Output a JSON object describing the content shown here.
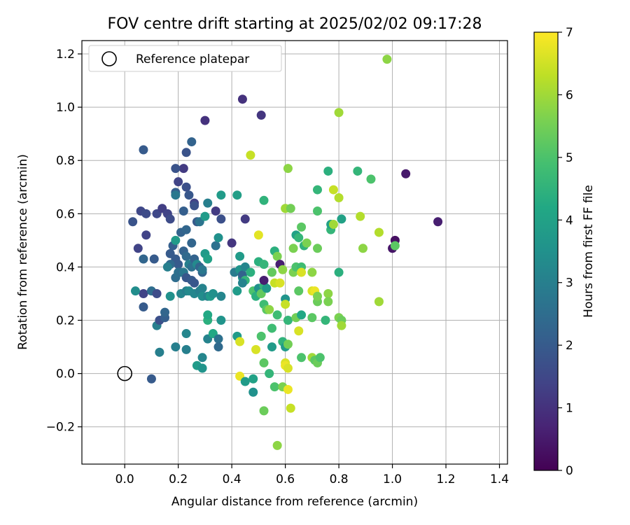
{
  "chart_data": {
    "type": "scatter",
    "title": "FOV centre drift starting at 2025/02/02 09:17:28",
    "xlabel": "Angular distance from reference (arcmin)",
    "ylabel": "Rotation from reference (arcmin)",
    "xlim": [
      -0.16,
      1.43
    ],
    "ylim": [
      -0.34,
      1.25
    ],
    "xticks": [
      "0.0",
      "0.2",
      "0.4",
      "0.6",
      "0.8",
      "1.0",
      "1.2",
      "1.4"
    ],
    "yticks": [
      "−0.2",
      "0.0",
      "0.2",
      "0.4",
      "0.6",
      "0.8",
      "1.0",
      "1.2"
    ],
    "grid": true,
    "legend": {
      "placement": "top-left",
      "label": "Reference platepar"
    },
    "reference": {
      "x": 0.0,
      "y": 0.0
    },
    "colorbar": {
      "label": "Hours from first FF file",
      "range": [
        0,
        7
      ],
      "ticks": [
        "0",
        "1",
        "2",
        "3",
        "4",
        "5",
        "6",
        "7"
      ],
      "colormap": "viridis"
    },
    "points": [
      [
        0.03,
        0.57,
        1.8
      ],
      [
        0.06,
        0.61,
        1.5
      ],
      [
        0.08,
        0.6,
        1.6
      ],
      [
        0.07,
        0.84,
        2.0
      ],
      [
        0.12,
        0.6,
        1.5
      ],
      [
        0.14,
        0.62,
        1.3
      ],
      [
        0.16,
        0.6,
        1.4
      ],
      [
        0.17,
        0.58,
        1.6
      ],
      [
        0.08,
        0.52,
        1.4
      ],
      [
        0.05,
        0.47,
        1.4
      ],
      [
        0.07,
        0.43,
        2.3
      ],
      [
        0.11,
        0.43,
        2.0
      ],
      [
        0.07,
        0.3,
        1.4
      ],
      [
        0.04,
        0.31,
        3.4
      ],
      [
        0.1,
        0.31,
        2.5
      ],
      [
        0.12,
        0.3,
        1.6
      ],
      [
        0.07,
        0.25,
        2.0
      ],
      [
        0.12,
        0.18,
        3.0
      ],
      [
        0.13,
        0.2,
        1.7
      ],
      [
        0.15,
        0.21,
        2.1
      ],
      [
        0.15,
        0.23,
        2.3
      ],
      [
        0.1,
        -0.02,
        2.0
      ],
      [
        0.13,
        0.08,
        3.0
      ],
      [
        0.17,
        0.29,
        3.5
      ],
      [
        0.19,
        0.1,
        3.0
      ],
      [
        0.23,
        0.09,
        3.0
      ],
      [
        0.23,
        0.15,
        3.2
      ],
      [
        0.22,
        0.77,
        1.2
      ],
      [
        0.23,
        0.83,
        1.8
      ],
      [
        0.25,
        0.87,
        2.2
      ],
      [
        0.19,
        0.68,
        2.1
      ],
      [
        0.19,
        0.67,
        2.8
      ],
      [
        0.2,
        0.72,
        1.4
      ],
      [
        0.19,
        0.77,
        1.8
      ],
      [
        0.23,
        0.7,
        1.7
      ],
      [
        0.24,
        0.67,
        1.9
      ],
      [
        0.26,
        0.64,
        1.4
      ],
      [
        0.26,
        0.63,
        1.8
      ],
      [
        0.22,
        0.61,
        2.1
      ],
      [
        0.21,
        0.53,
        2.2
      ],
      [
        0.23,
        0.54,
        2.3
      ],
      [
        0.25,
        0.49,
        2.3
      ],
      [
        0.27,
        0.57,
        2.0
      ],
      [
        0.28,
        0.57,
        2.7
      ],
      [
        0.3,
        0.59,
        3.8
      ],
      [
        0.31,
        0.64,
        3.0
      ],
      [
        0.17,
        0.45,
        2.0
      ],
      [
        0.18,
        0.48,
        2.1
      ],
      [
        0.19,
        0.5,
        3.8
      ],
      [
        0.19,
        0.43,
        2.0
      ],
      [
        0.2,
        0.41,
        2.0
      ],
      [
        0.17,
        0.41,
        2.4
      ],
      [
        0.16,
        0.4,
        3.0
      ],
      [
        0.19,
        0.36,
        2.5
      ],
      [
        0.2,
        0.38,
        2.6
      ],
      [
        0.21,
        0.38,
        2.5
      ],
      [
        0.22,
        0.46,
        2.2
      ],
      [
        0.23,
        0.44,
        2.4
      ],
      [
        0.22,
        0.38,
        2.8
      ],
      [
        0.23,
        0.36,
        1.9
      ],
      [
        0.25,
        0.35,
        2.0
      ],
      [
        0.26,
        0.34,
        1.9
      ],
      [
        0.24,
        0.41,
        3.0
      ],
      [
        0.25,
        0.4,
        2.6
      ],
      [
        0.26,
        0.43,
        2.2
      ],
      [
        0.27,
        0.41,
        3.3
      ],
      [
        0.28,
        0.4,
        2.3
      ],
      [
        0.29,
        0.38,
        2.3
      ],
      [
        0.3,
        0.45,
        3.8
      ],
      [
        0.31,
        0.43,
        4.0
      ],
      [
        0.21,
        0.3,
        3.2
      ],
      [
        0.23,
        0.31,
        3.0
      ],
      [
        0.24,
        0.31,
        3.3
      ],
      [
        0.26,
        0.3,
        3.2
      ],
      [
        0.28,
        0.31,
        3.0
      ],
      [
        0.29,
        0.32,
        3.1
      ],
      [
        0.29,
        0.29,
        3.4
      ],
      [
        0.31,
        0.29,
        3.1
      ],
      [
        0.32,
        0.29,
        3.8
      ],
      [
        0.33,
        0.3,
        3.5
      ],
      [
        0.36,
        0.29,
        3.2
      ],
      [
        0.29,
        0.39,
        2.8
      ],
      [
        0.27,
        0.03,
        3.8
      ],
      [
        0.29,
        0.06,
        3.2
      ],
      [
        0.29,
        0.02,
        3.6
      ],
      [
        0.31,
        0.13,
        3.1
      ],
      [
        0.33,
        0.15,
        4.2
      ],
      [
        0.35,
        0.13,
        2.6
      ],
      [
        0.35,
        0.1,
        2.4
      ],
      [
        0.36,
        0.2,
        3.6
      ],
      [
        0.31,
        0.2,
        4.4
      ],
      [
        0.31,
        0.22,
        4.2
      ],
      [
        0.34,
        0.48,
        2.6
      ],
      [
        0.35,
        0.51,
        3.5
      ],
      [
        0.36,
        0.58,
        1.7
      ],
      [
        0.36,
        0.67,
        3.8
      ],
      [
        0.34,
        0.61,
        1.2
      ],
      [
        0.3,
        0.95,
        1.0
      ],
      [
        0.4,
        0.49,
        1.1
      ],
      [
        0.41,
        0.38,
        2.9
      ],
      [
        0.42,
        0.67,
        3.9
      ],
      [
        0.43,
        0.39,
        3.6
      ],
      [
        0.44,
        0.36,
        3.8
      ],
      [
        0.44,
        0.37,
        2.2
      ],
      [
        0.43,
        0.44,
        3.8
      ],
      [
        0.45,
        0.35,
        4.6
      ],
      [
        0.44,
        0.34,
        3.1
      ],
      [
        0.45,
        0.4,
        3.2
      ],
      [
        0.45,
        0.58,
        1.2
      ],
      [
        0.44,
        1.03,
        1.0
      ],
      [
        0.42,
        0.31,
        3.8
      ],
      [
        0.47,
        0.38,
        4.4
      ],
      [
        0.48,
        0.31,
        5.0
      ],
      [
        0.49,
        0.29,
        4.4
      ],
      [
        0.5,
        0.32,
        3.5
      ],
      [
        0.51,
        0.3,
        5.3
      ],
      [
        0.52,
        0.33,
        4.6
      ],
      [
        0.52,
        0.26,
        4.8
      ],
      [
        0.53,
        0.24,
        5.2
      ],
      [
        0.54,
        0.24,
        5.8
      ],
      [
        0.5,
        0.42,
        4.4
      ],
      [
        0.52,
        0.41,
        4.6
      ],
      [
        0.55,
        0.38,
        5.3
      ],
      [
        0.56,
        0.46,
        4.4
      ],
      [
        0.57,
        0.44,
        5.6
      ],
      [
        0.52,
        0.65,
        4.5
      ],
      [
        0.53,
        0.32,
        3.8
      ],
      [
        0.55,
        0.17,
        4.8
      ],
      [
        0.55,
        0.1,
        3.8
      ],
      [
        0.51,
        0.14,
        5.0
      ],
      [
        0.52,
        0.04,
        5.2
      ],
      [
        0.54,
        0.0,
        4.6
      ],
      [
        0.56,
        -0.05,
        5.0
      ],
      [
        0.52,
        -0.14,
        5.4
      ],
      [
        0.57,
        -0.27,
        5.8
      ],
      [
        0.51,
        0.97,
        1.1
      ],
      [
        0.52,
        0.35,
        0.6
      ],
      [
        0.42,
        0.14,
        3.8
      ],
      [
        0.43,
        0.12,
        6.6
      ],
      [
        0.43,
        -0.01,
        6.8
      ],
      [
        0.45,
        -0.03,
        3.8
      ],
      [
        0.48,
        -0.07,
        3.5
      ],
      [
        0.48,
        -0.02,
        4.0
      ],
      [
        0.5,
        0.52,
        6.7
      ],
      [
        0.49,
        0.09,
        6.6
      ],
      [
        0.47,
        0.82,
        6.4
      ],
      [
        0.56,
        0.34,
        6.4
      ],
      [
        0.58,
        0.34,
        6.6
      ],
      [
        0.58,
        0.41,
        0.6
      ],
      [
        0.59,
        0.39,
        5.8
      ],
      [
        0.6,
        0.28,
        3.6
      ],
      [
        0.6,
        0.26,
        6.4
      ],
      [
        0.57,
        0.22,
        4.8
      ],
      [
        0.59,
        0.12,
        4.5
      ],
      [
        0.6,
        0.1,
        3.8
      ],
      [
        0.6,
        0.04,
        6.6
      ],
      [
        0.6,
        0.03,
        6.8
      ],
      [
        0.61,
        0.02,
        6.6
      ],
      [
        0.61,
        0.11,
        5.5
      ],
      [
        0.59,
        -0.05,
        5.6
      ],
      [
        0.61,
        -0.06,
        6.8
      ],
      [
        0.62,
        -0.13,
        6.4
      ],
      [
        0.61,
        0.2,
        4.6
      ],
      [
        0.61,
        0.77,
        5.8
      ],
      [
        0.6,
        0.62,
        6.0
      ],
      [
        0.62,
        0.62,
        5.5
      ],
      [
        0.63,
        0.38,
        5.6
      ],
      [
        0.64,
        0.4,
        5.0
      ],
      [
        0.64,
        0.52,
        4.0
      ],
      [
        0.65,
        0.51,
        4.6
      ],
      [
        0.66,
        0.4,
        4.8
      ],
      [
        0.66,
        0.38,
        6.6
      ],
      [
        0.66,
        0.55,
        5.2
      ],
      [
        0.63,
        0.47,
        5.6
      ],
      [
        0.64,
        0.21,
        5.5
      ],
      [
        0.65,
        0.16,
        6.6
      ],
      [
        0.65,
        0.31,
        5.2
      ],
      [
        0.66,
        0.06,
        5.0
      ],
      [
        0.66,
        0.22,
        4.2
      ],
      [
        0.67,
        0.48,
        4.5
      ],
      [
        0.68,
        0.49,
        5.6
      ],
      [
        0.7,
        0.38,
        5.8
      ],
      [
        0.7,
        0.31,
        6.6
      ],
      [
        0.71,
        0.31,
        6.8
      ],
      [
        0.7,
        0.21,
        5.2
      ],
      [
        0.7,
        0.06,
        6.0
      ],
      [
        0.71,
        0.05,
        5.2
      ],
      [
        0.72,
        0.04,
        5.4
      ],
      [
        0.73,
        0.06,
        5.0
      ],
      [
        0.72,
        0.27,
        5.4
      ],
      [
        0.72,
        0.29,
        5.6
      ],
      [
        0.72,
        0.47,
        5.4
      ],
      [
        0.72,
        0.61,
        5.0
      ],
      [
        0.72,
        0.69,
        4.6
      ],
      [
        0.75,
        0.2,
        4.6
      ],
      [
        0.76,
        0.3,
        5.8
      ],
      [
        0.76,
        0.27,
        5.6
      ],
      [
        0.77,
        0.54,
        4.6
      ],
      [
        0.77,
        0.56,
        4.0
      ],
      [
        0.76,
        0.76,
        4.4
      ],
      [
        0.78,
        0.56,
        6.0
      ],
      [
        0.78,
        0.69,
        6.4
      ],
      [
        0.8,
        0.66,
        6.2
      ],
      [
        0.8,
        0.98,
        6.0
      ],
      [
        0.8,
        0.38,
        4.4
      ],
      [
        0.8,
        0.21,
        5.6
      ],
      [
        0.81,
        0.2,
        5.4
      ],
      [
        0.81,
        0.18,
        6.0
      ],
      [
        0.81,
        0.58,
        4.0
      ],
      [
        0.87,
        0.76,
        4.6
      ],
      [
        0.88,
        0.59,
        6.2
      ],
      [
        0.89,
        0.47,
        5.8
      ],
      [
        0.92,
        0.73,
        5.0
      ],
      [
        0.95,
        0.53,
        6.2
      ],
      [
        0.95,
        0.27,
        6.0
      ],
      [
        0.98,
        1.18,
        5.8
      ],
      [
        1.0,
        0.47,
        0.4
      ],
      [
        1.01,
        0.5,
        0.3
      ],
      [
        1.01,
        0.48,
        5.2
      ],
      [
        1.05,
        0.75,
        0.5
      ],
      [
        1.17,
        0.57,
        0.6
      ]
    ]
  }
}
